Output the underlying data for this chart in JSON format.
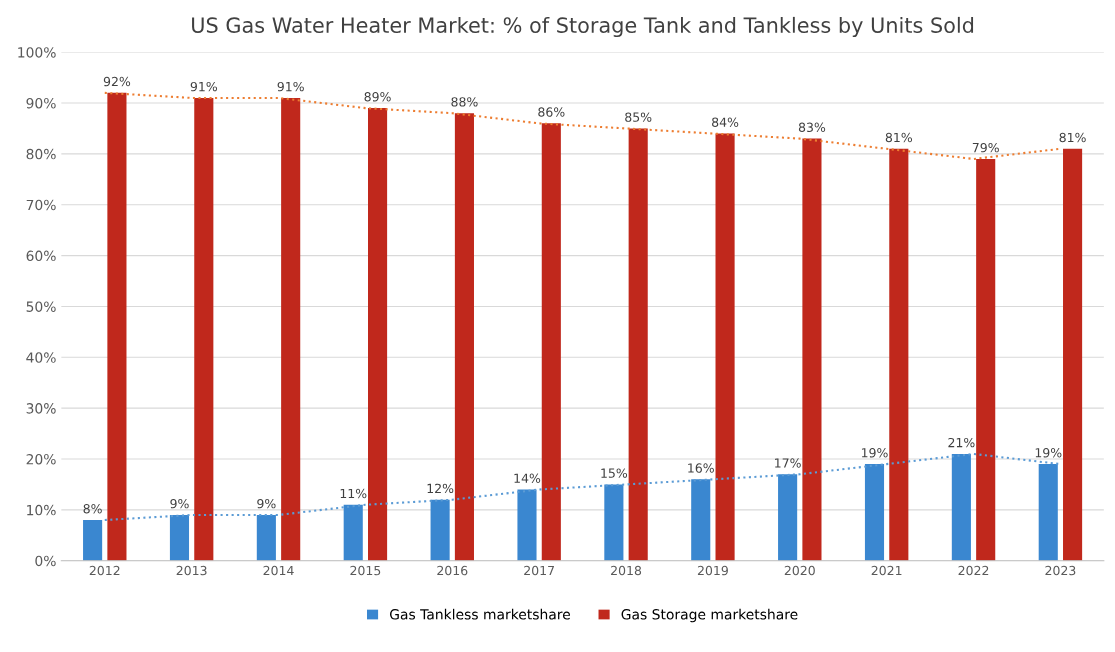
{
  "chart_data": {
    "type": "bar",
    "title": "US Gas Water Heater Market: % of Storage Tank and Tankless by Units Sold",
    "categories": [
      "2012",
      "2013",
      "2014",
      "2015",
      "2016",
      "2017",
      "2018",
      "2019",
      "2020",
      "2021",
      "2022",
      "2023"
    ],
    "series": [
      {
        "name": "Gas Tankless marketshare",
        "color": "#3a87d0",
        "values": [
          8,
          9,
          9,
          11,
          12,
          14,
          15,
          16,
          17,
          19,
          21,
          19
        ],
        "value_labels": [
          "8%",
          "9%",
          "9%",
          "11%",
          "12%",
          "14%",
          "15%",
          "16%",
          "17%",
          "19%",
          "21%",
          "19%"
        ]
      },
      {
        "name": "Gas Storage marketshare",
        "color": "#c0281c",
        "values": [
          92,
          91,
          91,
          89,
          88,
          86,
          85,
          84,
          83,
          81,
          79,
          81
        ],
        "value_labels": [
          "92%",
          "91%",
          "91%",
          "89%",
          "88%",
          "86%",
          "85%",
          "84%",
          "83%",
          "81%",
          "79%",
          "81%"
        ]
      },
      {
        "type": "line",
        "color": "#5b9bd5",
        "line_style": "dotted",
        "values": [
          8,
          9,
          9,
          11,
          12,
          14,
          15,
          16,
          17,
          19,
          21,
          19
        ]
      },
      {
        "type": "line",
        "color": "#ed7d31",
        "line_style": "dotted",
        "values": [
          92,
          91,
          91,
          89,
          88,
          86,
          85,
          84,
          83,
          81,
          79,
          81
        ]
      }
    ],
    "ylim": [
      0,
      100
    ],
    "yticks": [
      {
        "value": 0,
        "label": "0%"
      },
      {
        "value": 10,
        "label": "10%"
      },
      {
        "value": 20,
        "label": "20%"
      },
      {
        "value": 30,
        "label": "30%"
      },
      {
        "value": 40,
        "label": "40%"
      },
      {
        "value": 50,
        "label": "50%"
      },
      {
        "value": 60,
        "label": "60%"
      },
      {
        "value": 70,
        "label": "70%"
      },
      {
        "value": 80,
        "label": "80%"
      },
      {
        "value": 90,
        "label": "90%"
      },
      {
        "value": 100,
        "label": "100%"
      }
    ],
    "grid": "y",
    "legend": "bottom"
  }
}
